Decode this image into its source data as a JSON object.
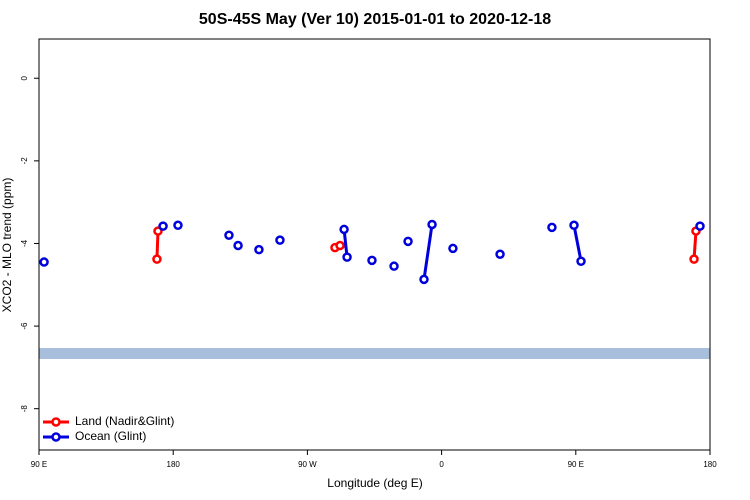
{
  "chart_data": {
    "type": "line",
    "title": "50S-45S May (Ver 10)   2015-01-01 to 2020-12-18",
    "x_label": "Longitude (deg E)",
    "y_label": "XCO2 - MLO trend (ppm)",
    "xlim": [
      90,
      540
    ],
    "ylim": [
      -9,
      0.95
    ],
    "xticks": [
      {
        "value": 90,
        "label": "90 E"
      },
      180,
      {
        "value": 270,
        "label": "90 W"
      },
      {
        "value": 360,
        "label": "0"
      },
      {
        "value": 450,
        "label": "90 E"
      },
      {
        "value": 540,
        "label": "180"
      }
    ],
    "yticks": [
      0,
      -2,
      -4,
      -6,
      -8
    ],
    "legend": "bottom-left",
    "series": [
      {
        "name": "Land (Nadir&Glint)",
        "color": "#ff0000",
        "x": [
          169.1,
          169.8,
          null,
          288.5,
          291.9,
          null,
          529.3,
          530.6
        ],
        "values": [
          -4.38,
          -3.7,
          null,
          -4.1,
          -4.05,
          null,
          -4.38,
          -3.7
        ]
      },
      {
        "name": "Ocean (Glint)",
        "color": "#0000dd",
        "x": [
          93.4,
          null,
          173.2,
          null,
          183.2,
          null,
          217.4,
          null,
          223.5,
          null,
          237.5,
          null,
          251.6,
          null,
          294.6,
          296.6,
          null,
          313.3,
          null,
          328.1,
          null,
          337.5,
          null,
          348.2,
          353.6,
          null,
          367.6,
          null,
          399.2,
          null,
          434.0,
          null,
          448.8,
          453.5,
          null,
          533.3
        ],
        "values": [
          -4.45,
          null,
          -3.58,
          null,
          -3.56,
          null,
          -3.8,
          null,
          -4.05,
          null,
          -4.15,
          null,
          -3.92,
          null,
          -3.66,
          -4.33,
          null,
          -4.41,
          null,
          -4.55,
          null,
          -3.95,
          null,
          -4.87,
          -3.54,
          null,
          -4.12,
          null,
          -4.26,
          null,
          -3.61,
          null,
          -3.56,
          -4.43,
          null,
          -3.58
        ]
      }
    ]
  }
}
